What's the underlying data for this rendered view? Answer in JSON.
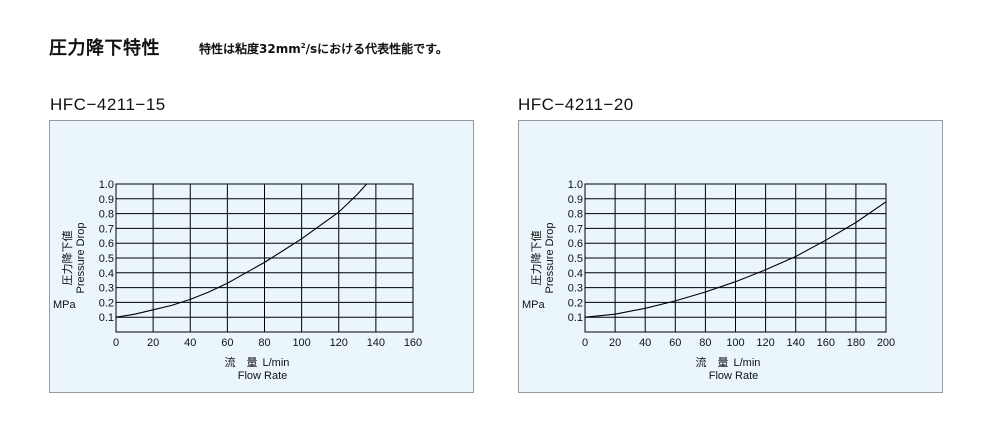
{
  "header": {
    "title": "圧力降下特性",
    "note_prefix": "特性は粘度32mm",
    "note_sup": "2",
    "note_suffix": "/sにおける代表性能です。"
  },
  "colors": {
    "panel_bg": "#eaf6fc",
    "grid": "#000000",
    "curve": "#000000",
    "border": "#9a9a9a"
  },
  "chart_data": [
    {
      "type": "line",
      "title": "HFC−4211−15",
      "ylabel_jp": "圧力降下値",
      "ylabel_en": "Pressure Drop",
      "yunit": "MPa",
      "xlabel_jp": "流　量",
      "xunit": "L/min",
      "xlabel_en": "Flow Rate",
      "xlim": [
        0,
        160
      ],
      "ylim": [
        0,
        1.0
      ],
      "xticks": [
        0,
        20,
        40,
        60,
        80,
        100,
        120,
        140,
        160
      ],
      "yticks": [
        0.1,
        0.2,
        0.3,
        0.4,
        0.5,
        0.6,
        0.7,
        0.8,
        0.9,
        1.0
      ],
      "ytick_labels": [
        "0.1",
        "0.2",
        "0.3",
        "0.4",
        "0.5",
        "0.6",
        "0.7",
        "0.8",
        "0.9",
        "1.0"
      ],
      "grid": true,
      "series": [
        {
          "x": [
            0,
            10,
            20,
            30,
            40,
            50,
            60,
            70,
            80,
            90,
            100,
            110,
            120,
            130,
            135
          ],
          "y": [
            0.1,
            0.12,
            0.15,
            0.18,
            0.22,
            0.27,
            0.33,
            0.4,
            0.47,
            0.55,
            0.63,
            0.72,
            0.81,
            0.93,
            1.0
          ]
        }
      ]
    },
    {
      "type": "line",
      "title": "HFC−4211−20",
      "ylabel_jp": "圧力降下値",
      "ylabel_en": "Pressure Drop",
      "yunit": "MPa",
      "xlabel_jp": "流　量",
      "xunit": "L/min",
      "xlabel_en": "Flow Rate",
      "xlim": [
        0,
        200
      ],
      "ylim": [
        0,
        1.0
      ],
      "xticks": [
        0,
        20,
        40,
        60,
        80,
        100,
        120,
        140,
        160,
        180,
        200
      ],
      "yticks": [
        0.1,
        0.2,
        0.3,
        0.4,
        0.5,
        0.6,
        0.7,
        0.8,
        0.9,
        1.0
      ],
      "ytick_labels": [
        "0.1",
        "0.2",
        "0.3",
        "0.4",
        "0.5",
        "0.6",
        "0.7",
        "0.8",
        "0.9",
        "1.0"
      ],
      "grid": true,
      "series": [
        {
          "x": [
            0,
            20,
            40,
            60,
            80,
            100,
            120,
            140,
            160,
            180,
            200
          ],
          "y": [
            0.1,
            0.12,
            0.16,
            0.21,
            0.27,
            0.34,
            0.42,
            0.51,
            0.62,
            0.74,
            0.88
          ]
        }
      ]
    }
  ]
}
